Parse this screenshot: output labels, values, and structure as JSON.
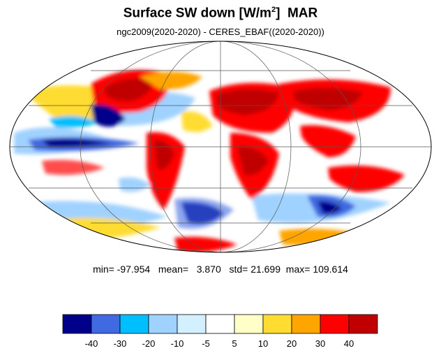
{
  "title": {
    "main": "Surface SW down [W/m",
    "sup": "2",
    "close": "]",
    "month": "MAR"
  },
  "subtitle": "ngc2009(2020-2020) - CERES_EBAF((2020-2020))",
  "stats": {
    "min_label": "min=",
    "min": "-97.954",
    "mean_label": "mean=",
    "mean": "3.870",
    "std_label": "std=",
    "std": "21.699",
    "max_label": "max=",
    "max": "109.614"
  },
  "colorbar": {
    "colors": [
      "#00008b",
      "#4169e1",
      "#00bfff",
      "#a0d2ff",
      "#d2f0ff",
      "#ffffff",
      "#ffffc8",
      "#ffdc32",
      "#ffa500",
      "#ff0000",
      "#c00000"
    ],
    "labels": [
      "-40",
      "-30",
      "-20",
      "-10",
      "-5",
      "5",
      "10",
      "20",
      "30",
      "40"
    ]
  }
}
